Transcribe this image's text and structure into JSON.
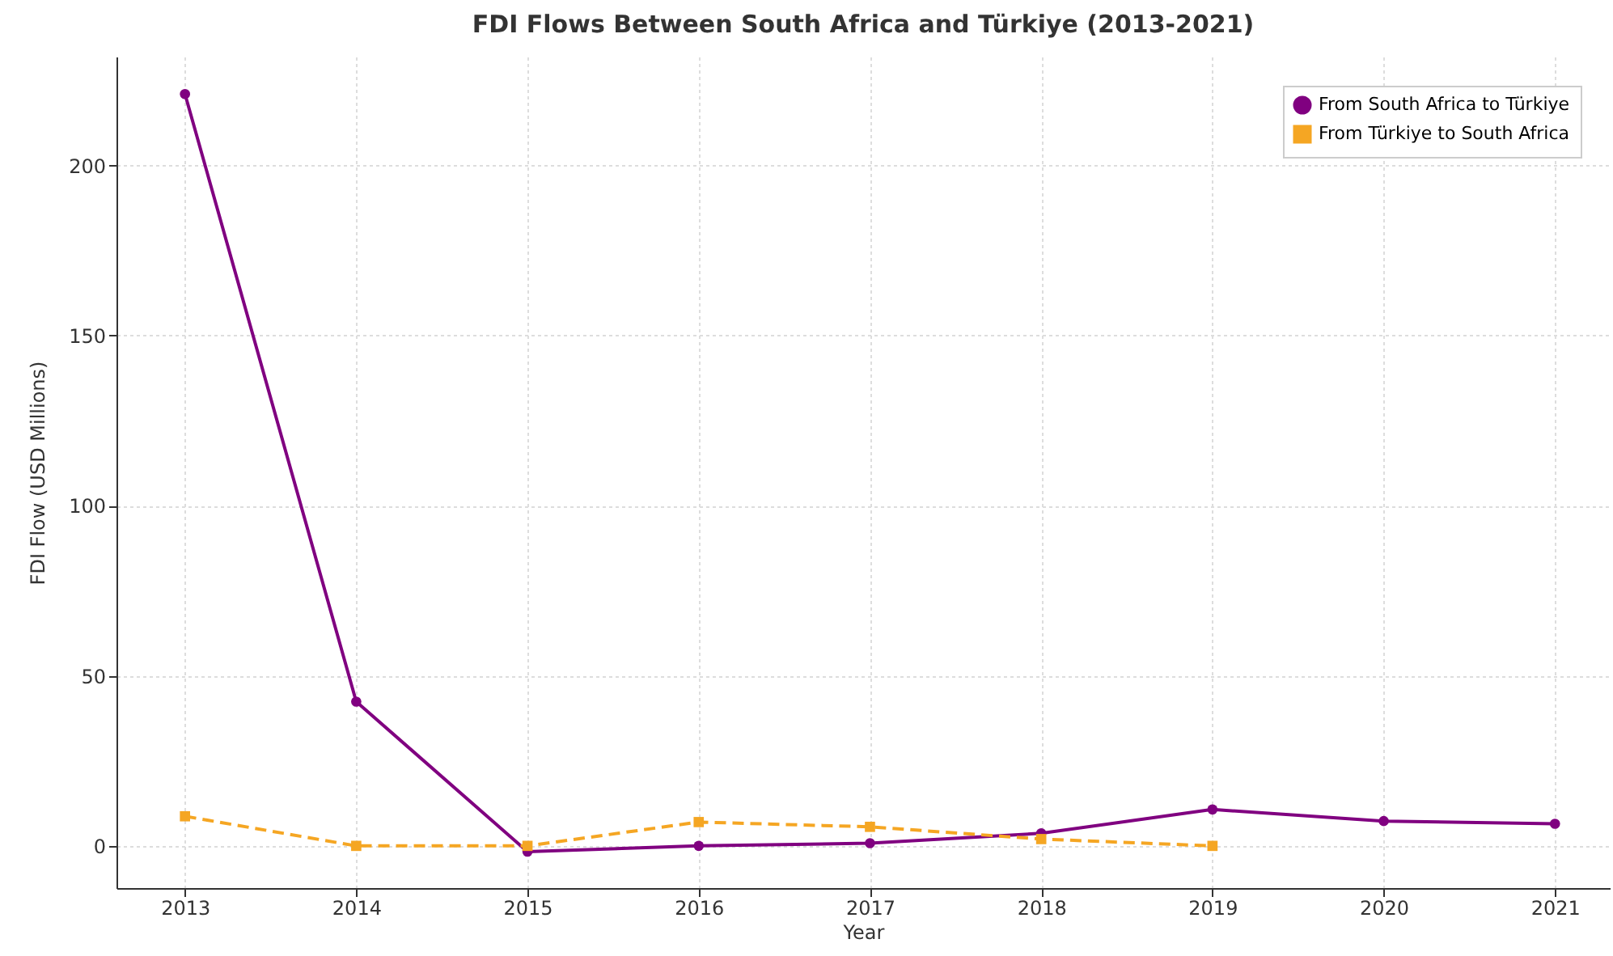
{
  "chart_data": {
    "type": "line",
    "title": "FDI Flows Between South Africa and Türkiye (2013-2021)",
    "xlabel": "Year",
    "ylabel": "FDI Flow (USD Millions)",
    "x": [
      2013,
      2014,
      2015,
      2016,
      2017,
      2018,
      2019,
      2020,
      2021
    ],
    "series": [
      {
        "name": "From South Africa to Türkiye",
        "color": "#800080",
        "marker": "circle",
        "line_style": "solid",
        "values": [
          221,
          42.4,
          -1.7,
          0,
          0.8,
          3.7,
          10.7,
          7.3,
          6.5
        ]
      },
      {
        "name": "From Türkiye to South Africa",
        "color": "#f5a623",
        "marker": "square",
        "line_style": "dashed",
        "values": [
          8.7,
          0,
          0,
          7,
          5.6,
          2,
          0,
          null,
          null
        ]
      }
    ],
    "xlim": [
      2012.6,
      2021.32
    ],
    "xticks": [
      2013,
      2014,
      2015,
      2016,
      2017,
      2018,
      2019,
      2020,
      2021
    ],
    "ylim": [
      -12.4,
      232
    ],
    "yticks": [
      0,
      50,
      100,
      150,
      200
    ],
    "grid": true,
    "legend": "top right"
  }
}
